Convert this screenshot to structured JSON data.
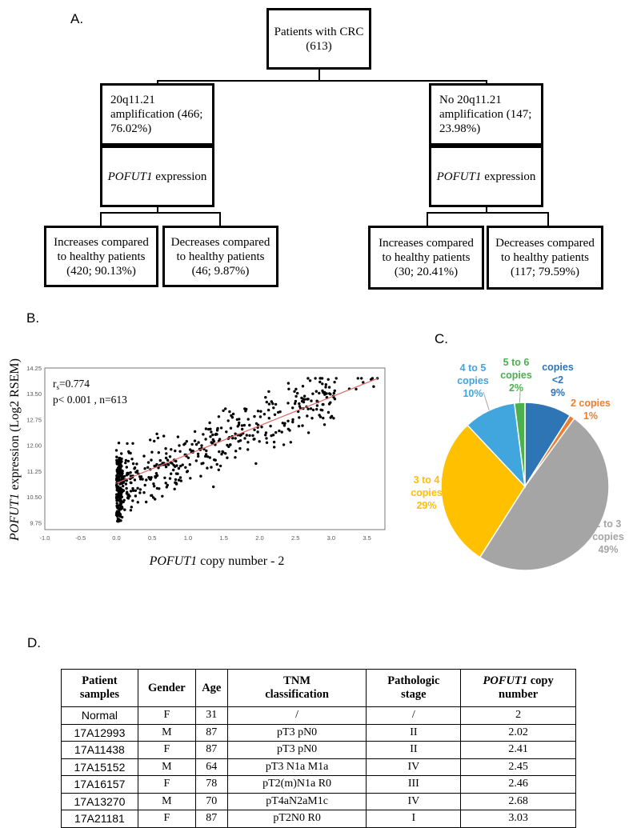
{
  "panel_a": {
    "label": "A.",
    "root": {
      "line1": "Patients with CRC",
      "line2": "(613)"
    },
    "left": {
      "amp": {
        "line1": "20q11.21",
        "line2": "amplification (466;",
        "line3": "76.02%)"
      },
      "expr": {
        "gene": "POFUT1",
        "text": " expression"
      },
      "inc": {
        "line1": "Increases compared",
        "line2": "to healthy patients",
        "line3": "(420; 90.13%)"
      },
      "dec": {
        "line1": "Decreases compared",
        "line2": "to healthy patients",
        "line3": "(46; 9.87%)"
      }
    },
    "right": {
      "amp": {
        "line1": "No 20q11.21",
        "line2": "amplification (147;",
        "line3": "23.98%)"
      },
      "expr": {
        "gene": "POFUT1",
        "text": " expression"
      },
      "inc": {
        "line1": "Increases compared",
        "line2": "to healthy patients",
        "line3": "(30; 20.41%)"
      },
      "dec": {
        "line1": "Decreases compared",
        "line2": "to healthy patients",
        "line3": "(117; 79.59%)"
      }
    }
  },
  "panel_b": {
    "label": "B."
  },
  "panel_c": {
    "label": "C."
  },
  "panel_d": {
    "label": "D."
  },
  "chart_data": [
    {
      "type": "scatter",
      "annotation_rs": "r",
      "annotation_rs_sub": "s",
      "annotation_rs_val": "=0.774",
      "annotation_p": "p< 0.001 , n=613",
      "xlabel_gene": "POFUT1",
      "xlabel_rest": " copy number - 2",
      "ylabel_gene": "POFUT1",
      "ylabel_rest": " expression (Log2 RSEM)",
      "xlim": [
        -1.0,
        3.75
      ],
      "ylim": [
        9.55,
        14.25
      ],
      "xticks": [
        "-1.0",
        "-0.5",
        "0.0",
        "0.5",
        "1.0",
        "1.5",
        "2.0",
        "2.5",
        "3.0",
        "3.5"
      ],
      "xtick_values": [
        -1.0,
        -0.5,
        0.0,
        0.5,
        1.0,
        1.5,
        2.0,
        2.5,
        3.0,
        3.5
      ],
      "yticks": [
        "9.75",
        "10.50",
        "11.25",
        "12.00",
        "12.75",
        "13.50",
        "14.25"
      ],
      "ytick_values": [
        9.75,
        10.5,
        11.25,
        12.0,
        12.75,
        13.5,
        14.25
      ],
      "regression": {
        "x": [
          0.0,
          3.65
        ],
        "y": [
          10.9,
          13.95
        ],
        "color": "#e06666"
      },
      "point_color": "#000000",
      "n_points": 613,
      "points_note": "cloud of 613 points; dense vertical cluster near x=0 spanning y 9.75-11.5, rising trend toward x=3.7"
    },
    {
      "type": "pie",
      "slices": [
        {
          "label_lines": [
            "copies",
            "<2",
            "9%"
          ],
          "value": 9,
          "color": "#2e75b6"
        },
        {
          "label_lines": [
            "2 copies",
            "1%"
          ],
          "value": 1,
          "color": "#ed7d31"
        },
        {
          "label_lines": [
            "2 to 3",
            "copies",
            "49%"
          ],
          "value": 49,
          "color": "#a5a5a5"
        },
        {
          "label_lines": [
            "3 to 4",
            "copies",
            "29%"
          ],
          "value": 29,
          "color": "#ffc000"
        },
        {
          "label_lines": [
            "4 to 5",
            "copies",
            "10%"
          ],
          "value": 10,
          "color": "#41a6de"
        },
        {
          "label_lines": [
            "5 to 6",
            "copies",
            "2%"
          ],
          "value": 2,
          "color": "#4caf50"
        }
      ]
    },
    {
      "type": "table",
      "headers": [
        {
          "line1": "Patient",
          "line2": "samples"
        },
        {
          "line1": "Gender",
          "line2": ""
        },
        {
          "line1": "Age",
          "line2": ""
        },
        {
          "line1": "TNM",
          "line2": "classification"
        },
        {
          "line1": "Pathologic",
          "line2": "stage"
        },
        {
          "line1": "POFUT1 copy",
          "line2": "number"
        }
      ],
      "rows": [
        [
          "Normal",
          "F",
          "31",
          "/",
          "/",
          "2"
        ],
        [
          "17A12993",
          "M",
          "87",
          "pT3 pN0",
          "II",
          "2.02"
        ],
        [
          "17A11438",
          "F",
          "87",
          "pT3 pN0",
          "II",
          "2.41"
        ],
        [
          "17A15152",
          "M",
          "64",
          "pT3 N1a M1a",
          "IV",
          "2.45"
        ],
        [
          "17A16157",
          "F",
          "78",
          "pT2(m)N1a R0",
          "III",
          "2.46"
        ],
        [
          "17A13270",
          "M",
          "70",
          "pT4aN2aM1c",
          "IV",
          "2.68"
        ],
        [
          "17A21181",
          "F",
          "87",
          "pT2N0 R0",
          "I",
          "3.03"
        ]
      ]
    }
  ]
}
